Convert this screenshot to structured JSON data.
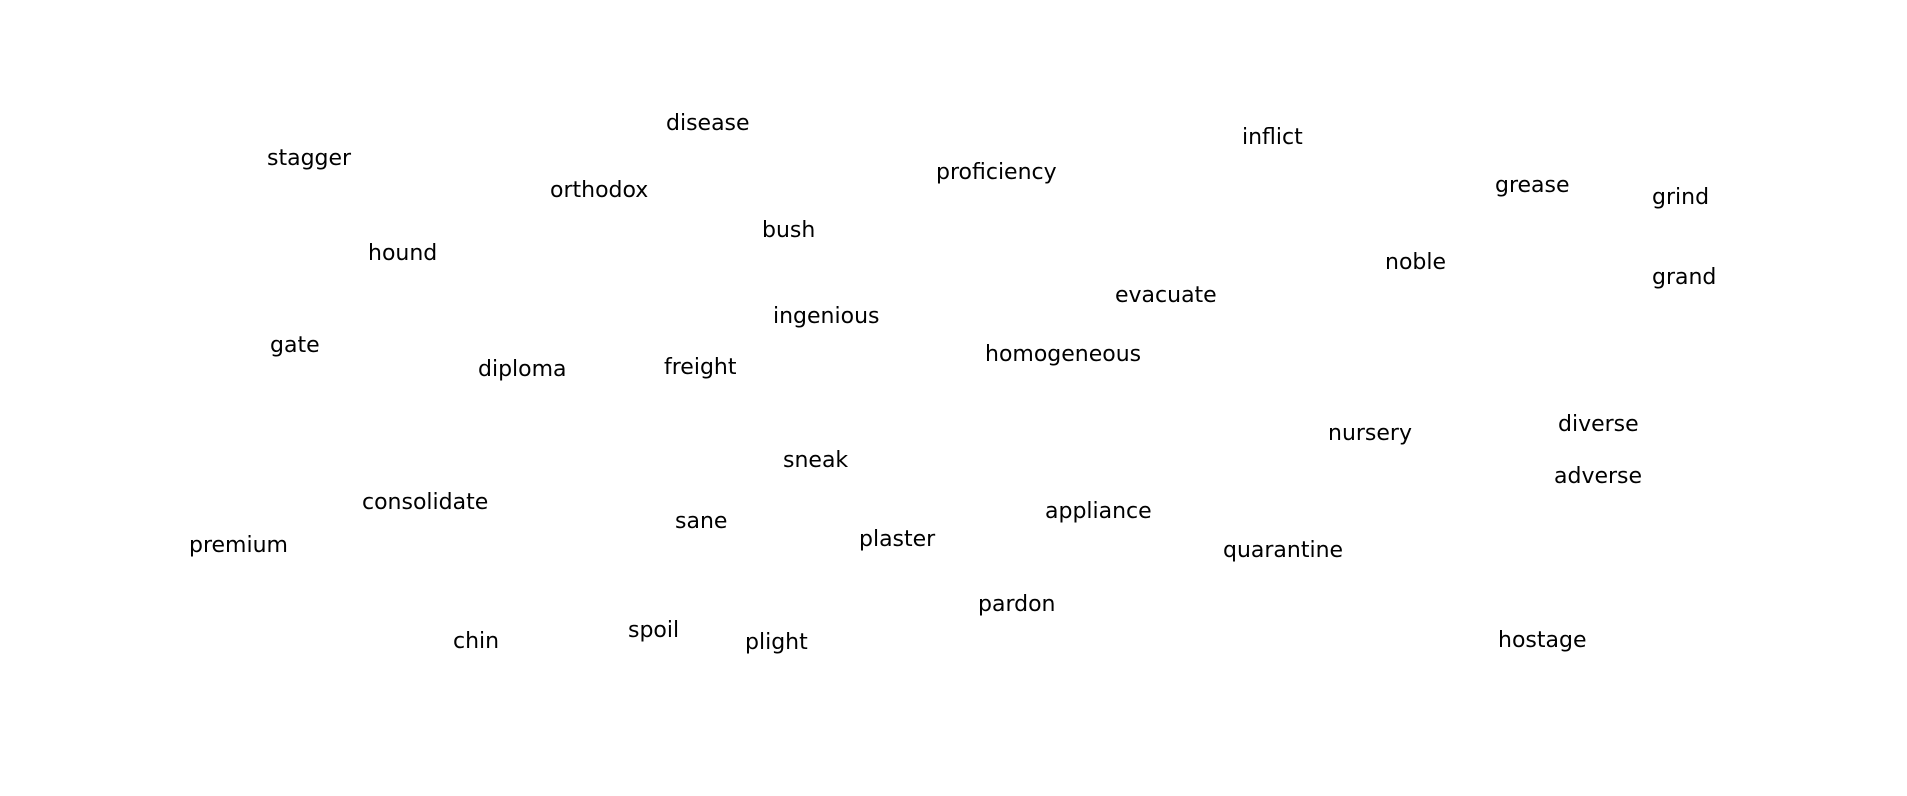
{
  "words": [
    "stagger",
    "disease",
    "orthodox",
    "proficiency",
    "inflict",
    "grease",
    "grind",
    "hound",
    "bush",
    "noble",
    "grand",
    "evacuate",
    "ingenious",
    "gate",
    "diploma",
    "freight",
    "homogeneous",
    "nursery",
    "diverse",
    "sneak",
    "adverse",
    "consolidate",
    "appliance",
    "sane",
    "plaster",
    "premium",
    "quarantine",
    "pardon",
    "spoil",
    "chin",
    "plight",
    "hostage"
  ]
}
